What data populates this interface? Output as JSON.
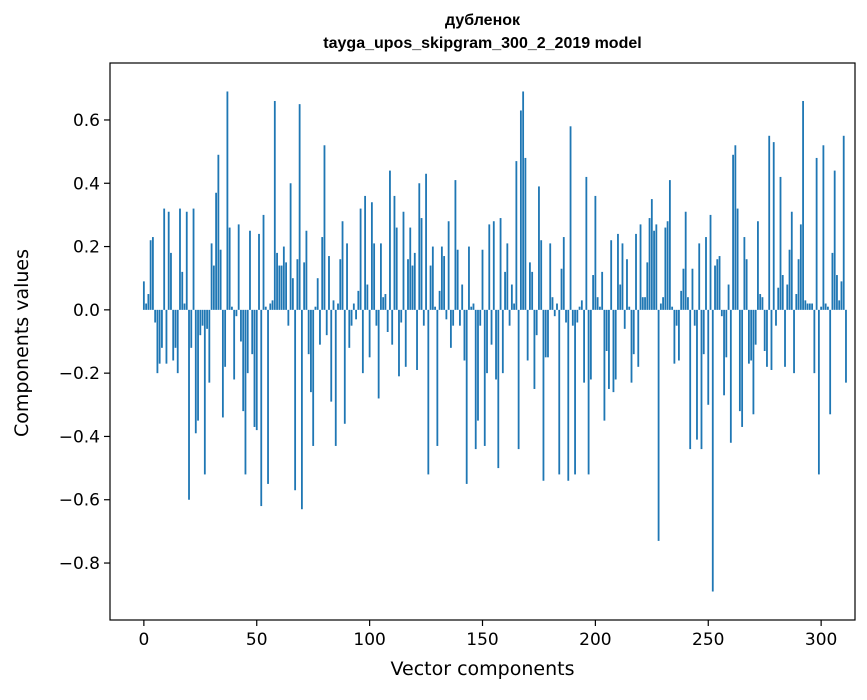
{
  "chart_data": {
    "type": "bar",
    "title": "дубленок",
    "subtitle": "tayga_upos_skipgram_300_2_2019 model",
    "xlabel": "Vector components",
    "ylabel": "Components values",
    "xlim": [
      -15,
      315
    ],
    "ylim": [
      -0.98,
      0.78
    ],
    "xticks": [
      0,
      50,
      100,
      150,
      200,
      250,
      300
    ],
    "yticks": [
      -0.8,
      -0.6,
      -0.4,
      -0.2,
      0.0,
      0.2,
      0.4,
      0.6
    ],
    "ytick_labels": [
      "−0.8",
      "−0.6",
      "−0.4",
      "−0.2",
      "0.0",
      "0.2",
      "0.4",
      "0.6"
    ],
    "bar_color": "#1f77b4",
    "grid": false,
    "values": [
      0.09,
      0.02,
      0.05,
      0.22,
      0.23,
      -0.04,
      -0.2,
      -0.17,
      -0.12,
      0.32,
      -0.17,
      0.31,
      0.18,
      -0.16,
      -0.12,
      -0.2,
      0.32,
      0.12,
      0.02,
      0.31,
      -0.6,
      -0.12,
      0.32,
      -0.39,
      -0.35,
      -0.08,
      -0.05,
      -0.52,
      -0.06,
      -0.23,
      0.21,
      0.14,
      0.37,
      0.49,
      0.19,
      -0.34,
      -0.18,
      0.69,
      0.26,
      0.01,
      -0.22,
      -0.02,
      0.27,
      -0.1,
      -0.32,
      -0.52,
      -0.2,
      0.25,
      -0.14,
      -0.37,
      -0.38,
      0.24,
      -0.62,
      0.3,
      0.01,
      -0.55,
      0.02,
      0.03,
      0.66,
      0.18,
      0.14,
      0.14,
      0.2,
      0.15,
      -0.05,
      0.4,
      0.1,
      -0.57,
      0.16,
      0.65,
      -0.63,
      0.15,
      0.25,
      -0.14,
      -0.26,
      -0.43,
      0.01,
      0.1,
      -0.11,
      0.23,
      0.52,
      -0.08,
      0.17,
      -0.29,
      0.03,
      -0.43,
      0.02,
      0.16,
      0.28,
      -0.36,
      0.21,
      -0.12,
      -0.05,
      0.02,
      -0.03,
      0.06,
      0.32,
      -0.2,
      0.36,
      0.08,
      -0.15,
      0.34,
      0.21,
      -0.05,
      -0.28,
      0.21,
      0.04,
      0.05,
      -0.07,
      0.44,
      -0.11,
      0.36,
      0.26,
      -0.21,
      -0.04,
      0.31,
      -0.18,
      0.16,
      0.26,
      0.14,
      0.18,
      -0.19,
      0.4,
      0.29,
      -0.05,
      0.43,
      -0.52,
      0.14,
      0.2,
      0.01,
      -0.43,
      0.06,
      0.2,
      0.17,
      -0.03,
      0.28,
      -0.12,
      -0.05,
      0.41,
      0.19,
      -0.05,
      0.08,
      -0.16,
      -0.55,
      0.2,
      0.01,
      0.02,
      -0.44,
      -0.35,
      -0.05,
      0.19,
      -0.43,
      -0.2,
      0.27,
      -0.11,
      0.28,
      -0.22,
      -0.5,
      0.29,
      -0.2,
      0.12,
      0.21,
      -0.05,
      0.08,
      0.02,
      0.47,
      -0.44,
      0.63,
      0.69,
      0.48,
      -0.16,
      0.15,
      0.12,
      -0.25,
      -0.08,
      0.39,
      0.22,
      -0.54,
      -0.15,
      -0.15,
      0.21,
      0.04,
      -0.02,
      0.02,
      -0.52,
      0.13,
      0.23,
      -0.04,
      -0.54,
      0.58,
      -0.05,
      -0.52,
      -0.04,
      0.01,
      0.03,
      -0.23,
      0.42,
      -0.52,
      -0.22,
      0.11,
      0.36,
      0.04,
      0.01,
      0.12,
      -0.35,
      -0.13,
      -0.25,
      0.22,
      -0.26,
      -0.22,
      0.24,
      0.08,
      0.21,
      -0.06,
      0.16,
      0.01,
      -0.23,
      -0.14,
      0.24,
      -0.18,
      0.27,
      0.04,
      0.04,
      0.15,
      0.29,
      0.35,
      0.25,
      0.27,
      -0.73,
      0.02,
      0.04,
      0.26,
      0.28,
      0.41,
      0.01,
      -0.17,
      -0.05,
      -0.16,
      0.06,
      0.13,
      0.31,
      0.04,
      -0.44,
      0.13,
      -0.05,
      -0.41,
      0.21,
      -0.44,
      -0.14,
      0.23,
      -0.3,
      0.3,
      -0.89,
      0.14,
      0.16,
      0.17,
      -0.02,
      -0.27,
      -0.15,
      0.08,
      -0.42,
      0.49,
      0.52,
      0.32,
      -0.32,
      -0.37,
      0.23,
      0.16,
      -0.17,
      -0.16,
      -0.33,
      -0.11,
      0.28,
      0.05,
      0.04,
      -0.13,
      -0.18,
      0.55,
      -0.19,
      0.53,
      -0.05,
      0.07,
      0.42,
      0.11,
      -0.18,
      0.08,
      0.19,
      0.31,
      -0.2,
      0.05,
      0.16,
      0.27,
      0.66,
      0.03,
      0.02,
      0.02,
      0.02,
      -0.2,
      0.48,
      -0.52,
      0.01,
      0.52,
      0.02,
      0.01,
      -0.33,
      0.18,
      0.44,
      0.11,
      0.03,
      0.09,
      0.55,
      -0.23
    ]
  }
}
